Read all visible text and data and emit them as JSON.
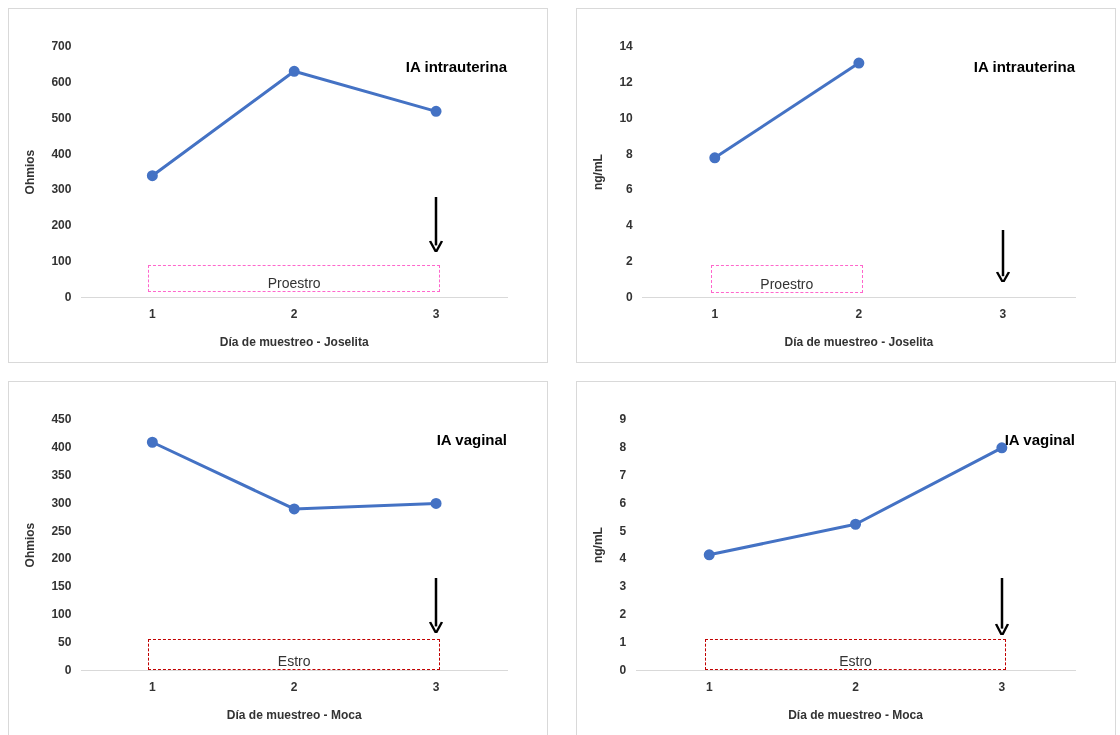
{
  "chart_data": [
    {
      "type": "line",
      "title": "IA intrauterina",
      "xlabel": "Día de muestreo - Joselita",
      "ylabel": "Ohmios",
      "categories": [
        "1",
        "2",
        "3"
      ],
      "series": [
        {
          "color": "#4472c4",
          "values": [
            340,
            632,
            520
          ]
        }
      ],
      "ylim": [
        0,
        700
      ],
      "yticks": [
        0,
        100,
        200,
        300,
        400,
        500,
        600,
        700
      ],
      "grid": false,
      "legend": false,
      "marker": "circle",
      "annotations": [
        "Proestro"
      ]
    },
    {
      "type": "line",
      "title": "IA intrauterina",
      "xlabel": "Día de muestreo - Joselita",
      "ylabel": "ng/mL",
      "categories": [
        "1",
        "2",
        "3"
      ],
      "series": [
        {
          "color": "#4472c4",
          "values": [
            7.8,
            13.1,
            null
          ]
        }
      ],
      "ylim": [
        0,
        14
      ],
      "yticks": [
        0,
        2,
        4,
        6,
        8,
        10,
        12,
        14
      ],
      "grid": false,
      "legend": false,
      "marker": "circle",
      "annotations": [
        "Proestro"
      ]
    },
    {
      "type": "line",
      "title": "IA vaginal",
      "xlabel": "Día de muestreo - Moca",
      "ylabel": "Ohmios",
      "categories": [
        "1",
        "2",
        "3"
      ],
      "series": [
        {
          "color": "#4472c4",
          "values": [
            410,
            290,
            300
          ]
        }
      ],
      "ylim": [
        0,
        450
      ],
      "yticks": [
        0,
        50,
        100,
        150,
        200,
        250,
        300,
        350,
        400,
        450
      ],
      "grid": false,
      "legend": false,
      "marker": "circle",
      "annotations": [
        "Estro"
      ]
    },
    {
      "type": "line",
      "title": "IA vaginal",
      "xlabel": "Día de muestreo - Moca",
      "ylabel": "ng/mL",
      "categories": [
        "1",
        "2",
        "3"
      ],
      "series": [
        {
          "color": "#4472c4",
          "values": [
            4.15,
            5.25,
            8.0
          ]
        }
      ],
      "ylim": [
        0,
        9
      ],
      "yticks": [
        0,
        1,
        2,
        3,
        4,
        5,
        6,
        7,
        8,
        9
      ],
      "grid": false,
      "legend": false,
      "marker": "circle",
      "annotations": [
        "Estro"
      ]
    }
  ]
}
